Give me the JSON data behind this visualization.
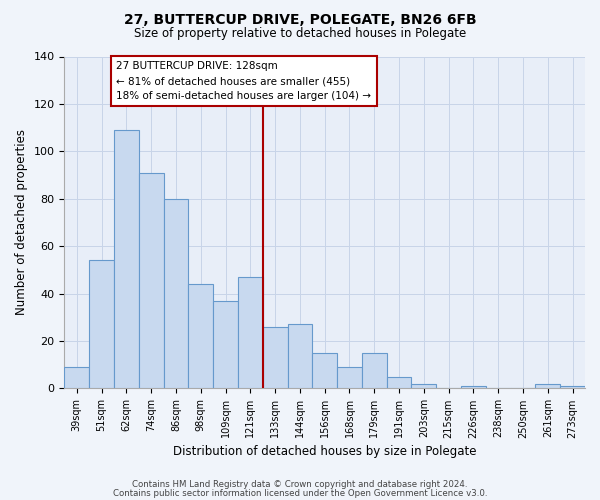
{
  "title": "27, BUTTERCUP DRIVE, POLEGATE, BN26 6FB",
  "subtitle": "Size of property relative to detached houses in Polegate",
  "xlabel": "Distribution of detached houses by size in Polegate",
  "ylabel": "Number of detached properties",
  "bar_labels": [
    "39sqm",
    "51sqm",
    "62sqm",
    "74sqm",
    "86sqm",
    "98sqm",
    "109sqm",
    "121sqm",
    "133sqm",
    "144sqm",
    "156sqm",
    "168sqm",
    "179sqm",
    "191sqm",
    "203sqm",
    "215sqm",
    "226sqm",
    "238sqm",
    "250sqm",
    "261sqm",
    "273sqm"
  ],
  "bar_values": [
    9,
    54,
    109,
    91,
    80,
    44,
    37,
    47,
    26,
    27,
    15,
    9,
    15,
    5,
    2,
    0,
    1,
    0,
    0,
    2,
    1
  ],
  "bar_color": "#c8d9ef",
  "bar_edge_color": "#6699cc",
  "vline_x": 7.5,
  "vline_color": "#aa0000",
  "ylim": [
    0,
    140
  ],
  "annotation_title": "27 BUTTERCUP DRIVE: 128sqm",
  "annotation_line1": "← 81% of detached houses are smaller (455)",
  "annotation_line2": "18% of semi-detached houses are larger (104) →",
  "annotation_box_color": "#ffffff",
  "annotation_box_edge": "#aa0000",
  "footer1": "Contains HM Land Registry data © Crown copyright and database right 2024.",
  "footer2": "Contains public sector information licensed under the Open Government Licence v3.0.",
  "background_color": "#f0f4fa",
  "plot_bg_color": "#e8eef8",
  "grid_color": "#c8d4e8"
}
